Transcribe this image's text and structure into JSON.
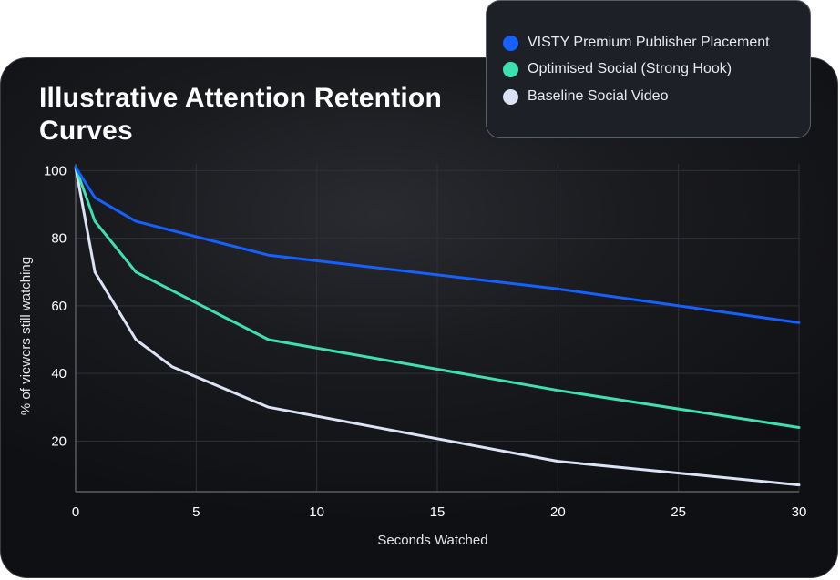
{
  "chart_data": {
    "type": "line",
    "title": "Illustrative Attention Retention Curves",
    "xlabel": "Seconds Watched",
    "ylabel": "% of viewers still watching",
    "xlim": [
      0,
      30
    ],
    "ylim": [
      5,
      102
    ],
    "xticks": [
      0,
      5,
      10,
      15,
      20,
      25,
      30
    ],
    "yticks": [
      20,
      40,
      60,
      80,
      100
    ],
    "grid": true,
    "legend_position": "top-right",
    "series": [
      {
        "name": "VISTY Premium Publisher Placement",
        "color": "#1560ff",
        "x": [
          0,
          0.8,
          2.5,
          8,
          20,
          30
        ],
        "y": [
          101,
          92,
          85,
          75,
          65,
          55
        ]
      },
      {
        "name": "Optimised Social (Strong Hook)",
        "color": "#3ee0b0",
        "x": [
          0,
          0.8,
          2.5,
          8,
          20,
          30
        ],
        "y": [
          101,
          85,
          70,
          50,
          35,
          24
        ]
      },
      {
        "name": "Baseline Social Video",
        "color": "#dde3f7",
        "x": [
          0,
          0.8,
          2.5,
          4,
          8,
          20,
          30
        ],
        "y": [
          101,
          70,
          50,
          42,
          30,
          14,
          7
        ]
      }
    ]
  },
  "colors": {
    "grid": "#2f3137",
    "axis": "#6a6c72"
  }
}
